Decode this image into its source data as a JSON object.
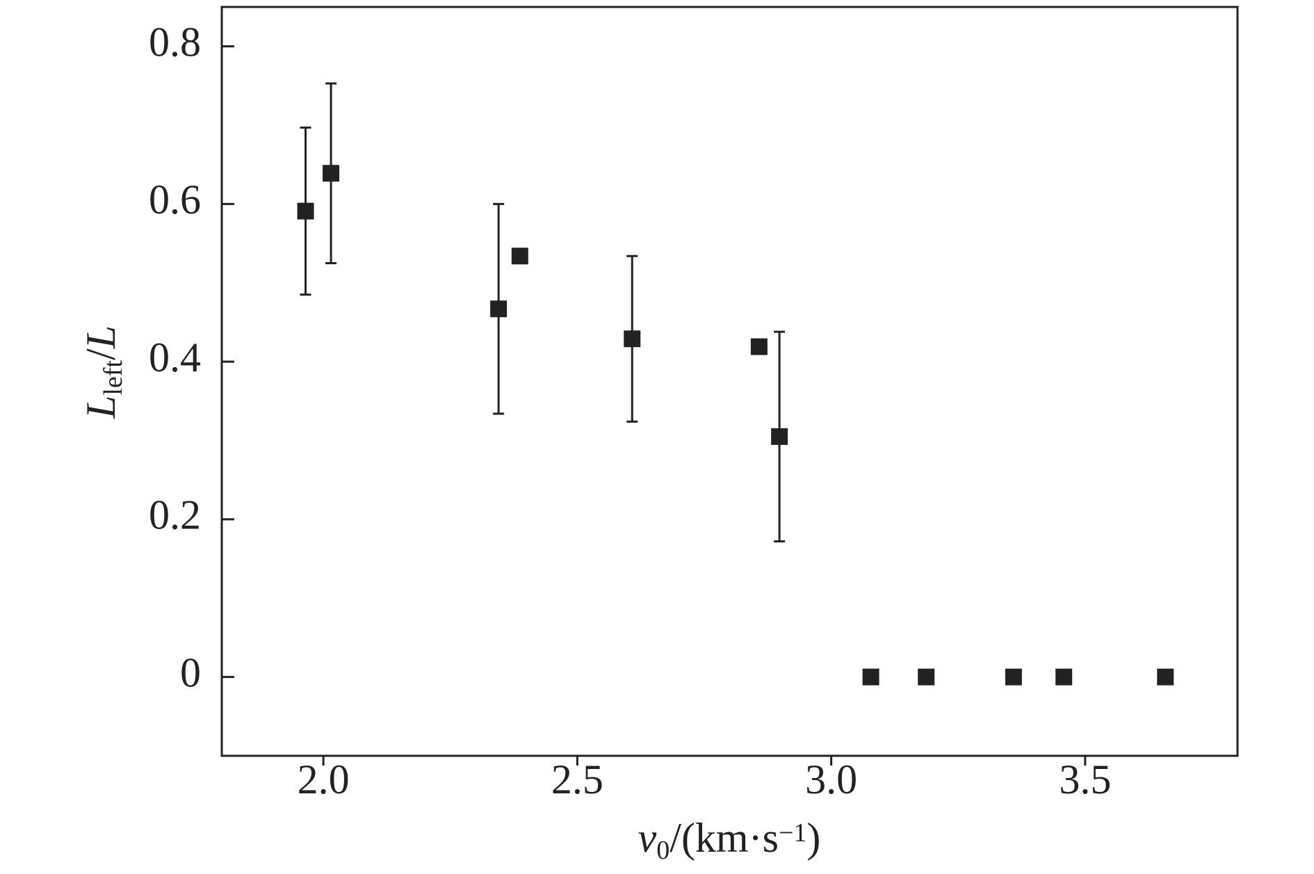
{
  "chart_data": {
    "type": "scatter",
    "x_label": [
      {
        "text": "v",
        "style": "italic"
      },
      {
        "text": "0",
        "style": "sub"
      },
      {
        "text": "/(km·s"
      },
      {
        "text": "−1",
        "style": "sup"
      },
      {
        "text": ")"
      }
    ],
    "y_label": [
      {
        "text": "L",
        "style": "italic"
      },
      {
        "text": "left",
        "style": "sub"
      },
      {
        "text": "/"
      },
      {
        "text": "L",
        "style": "italic"
      }
    ],
    "x": [
      1.965,
      2.015,
      2.345,
      2.387,
      2.608,
      2.858,
      2.898,
      3.078,
      3.187,
      3.359,
      3.458,
      3.658
    ],
    "values": [
      0.591,
      0.639,
      0.467,
      0.534,
      0.429,
      0.419,
      0.305,
      0,
      0,
      0,
      0,
      0
    ],
    "errors": [
      0.106,
      0.114,
      0.133,
      null,
      0.105,
      null,
      0.133,
      null,
      null,
      null,
      null,
      null
    ],
    "color": "#222222",
    "xlim": [
      1.8,
      3.8
    ],
    "xticks": [
      {
        "value": 2,
        "label": "2.0"
      },
      2.5,
      {
        "value": 3,
        "label": "3.0"
      },
      3.5
    ],
    "ylim": [
      -0.1,
      0.85
    ],
    "yticks": [
      0,
      0.2,
      0.4,
      0.6,
      0.8
    ],
    "grid": false
  }
}
